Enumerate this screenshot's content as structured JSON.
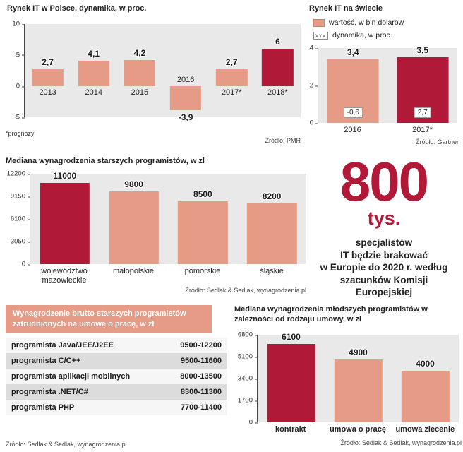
{
  "colors": {
    "salmon": "#e59b85",
    "crimson": "#b01938",
    "chart_bg": "#e9e9e9"
  },
  "chart_data": [
    {
      "type": "bar",
      "title": "Rynek IT w Polsce, dynamika, w proc.",
      "categories": [
        "2013",
        "2014",
        "2015",
        "2016",
        "2017*",
        "2018*"
      ],
      "values": [
        2.7,
        4.1,
        4.2,
        -3.9,
        2.7,
        6
      ],
      "value_labels": [
        "2,7",
        "4,1",
        "4,2",
        "-3,9",
        "2,7",
        "6"
      ],
      "colors": [
        "#e59b85",
        "#e59b85",
        "#e59b85",
        "#e59b85",
        "#e59b85",
        "#b01938"
      ],
      "ylim": [
        -5,
        10
      ],
      "yticks": [
        "10",
        "5",
        "0",
        "-5"
      ],
      "footnote": "*prognozy",
      "source": "Źródło: PMR"
    },
    {
      "type": "bar",
      "title": "Rynek IT na  świecie",
      "legend": [
        {
          "label": "wartość, w bln dolarów"
        },
        {
          "label": "dynamika, w proc.",
          "swatch_text": "xxx"
        }
      ],
      "categories": [
        "2016",
        "2017*"
      ],
      "values": [
        3.4,
        3.5
      ],
      "value_labels": [
        "3,4",
        "3,5"
      ],
      "dynamics_labels": [
        "-0,6",
        "2,7"
      ],
      "colors": [
        "#e59b85",
        "#b01938"
      ],
      "ylim": [
        0,
        4
      ],
      "yticks": [
        "4",
        "2",
        "0"
      ],
      "source": "Źródło: Gartner"
    },
    {
      "type": "bar",
      "title": "Mediana wynagrodzenia  starszych programistów, w zł",
      "categories": [
        "województwo mazowieckie",
        "małopolskie",
        "pomorskie",
        "śląskie"
      ],
      "values": [
        11000,
        9800,
        8500,
        8200
      ],
      "value_labels": [
        "11000",
        "9800",
        "8500",
        "8200"
      ],
      "colors": [
        "#b01938",
        "#e59b85",
        "#e59b85",
        "#e59b85"
      ],
      "ylim": [
        0,
        12200
      ],
      "yticks": [
        "12200",
        "9150",
        "6100",
        "3050",
        "0"
      ],
      "source": "Źródło: Sedlak & Sedlak, wynagrodzenia.pl"
    },
    {
      "type": "bar",
      "title": "Mediana wynagrodzenia młodszych programistów w zależności od rodzaju umowy, w zł",
      "categories": [
        "kontrakt",
        "umowa o pracę",
        "umowa zlecenie"
      ],
      "values": [
        6100,
        4900,
        4000
      ],
      "value_labels": [
        "6100",
        "4900",
        "4000"
      ],
      "colors": [
        "#b01938",
        "#e59b85",
        "#e59b85"
      ],
      "ylim": [
        0,
        6800
      ],
      "yticks": [
        "6800",
        "5100",
        "3400",
        "1700",
        "0"
      ],
      "source": "Źródło: Sedlak & Sedlak, wynagrodzenia.pl"
    }
  ],
  "highlight": {
    "number": "800",
    "unit": "tys.",
    "lines": [
      "specjalistów",
      "IT będzie brakować",
      "w Europie do 2020 r. według",
      "szacunków Komisji",
      "Europejskiej"
    ]
  },
  "table": {
    "title": "Wynagrodzenie brutto starszych programistów zatrudnionych na umowę o pracę, w zł",
    "rows": [
      {
        "label": "programista Java/JEE/J2EE",
        "value": "9500-12200"
      },
      {
        "label": "programista C/C++",
        "value": "9500-11600"
      },
      {
        "label": "programista aplikacji mobilnych",
        "value": "8000-13500"
      },
      {
        "label": "programista .NET/C#",
        "value": "8300-11300"
      },
      {
        "label": "programista PHP",
        "value": "7700-11400"
      }
    ],
    "source": "Źródło:  Sedlak & Sedlak, wynagrodzenia.pl"
  }
}
